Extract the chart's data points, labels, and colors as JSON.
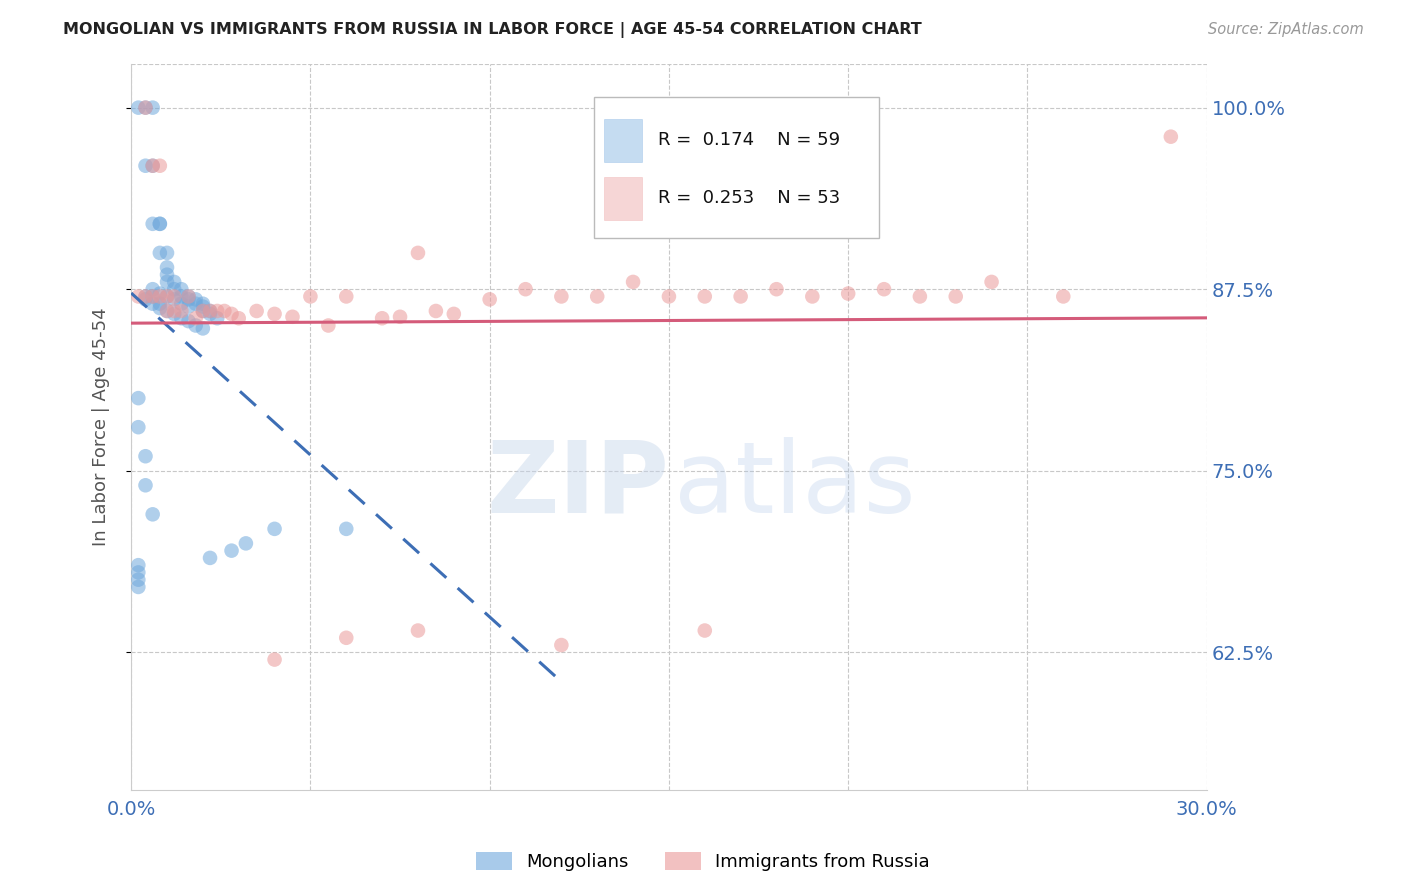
{
  "title": "MONGOLIAN VS IMMIGRANTS FROM RUSSIA IN LABOR FORCE | AGE 45-54 CORRELATION CHART",
  "source": "Source: ZipAtlas.com",
  "ylabel": "In Labor Force | Age 45-54",
  "legend_labels": [
    "Mongolians",
    "Immigrants from Russia"
  ],
  "R_mongolian": 0.174,
  "N_mongolian": 59,
  "R_russia": 0.253,
  "N_russia": 53,
  "x_min": 0.0,
  "x_max": 0.3,
  "y_min": 0.53,
  "y_max": 1.03,
  "yticks": [
    0.625,
    0.75,
    0.875,
    1.0
  ],
  "ytick_labels": [
    "62.5%",
    "75.0%",
    "87.5%",
    "100.0%"
  ],
  "xticks": [
    0.0,
    0.05,
    0.1,
    0.15,
    0.2,
    0.25,
    0.3
  ],
  "color_mongolian": "#6fa8dc",
  "color_russia": "#ea9999",
  "trendline_color_mongolian": "#3d6eb5",
  "trendline_color_russia": "#d45b7a",
  "background_color": "#ffffff",
  "watermark_zip": "ZIP",
  "watermark_atlas": "atlas",
  "mongolian_x": [
    0.002,
    0.004,
    0.006,
    0.004,
    0.006,
    0.006,
    0.008,
    0.008,
    0.008,
    0.01,
    0.01,
    0.01,
    0.01,
    0.012,
    0.012,
    0.014,
    0.014,
    0.016,
    0.016,
    0.018,
    0.018,
    0.02,
    0.02,
    0.02,
    0.022,
    0.022,
    0.024,
    0.006,
    0.008,
    0.01,
    0.012,
    0.014,
    0.016,
    0.004,
    0.004,
    0.006,
    0.006,
    0.008,
    0.008,
    0.01,
    0.012,
    0.014,
    0.016,
    0.018,
    0.02,
    0.002,
    0.002,
    0.004,
    0.004,
    0.006,
    0.04,
    0.06,
    0.032,
    0.028,
    0.022,
    0.002,
    0.002,
    0.002,
    0.002
  ],
  "mongolian_y": [
    1.0,
    1.0,
    1.0,
    0.96,
    0.96,
    0.92,
    0.92,
    0.92,
    0.9,
    0.9,
    0.89,
    0.885,
    0.88,
    0.88,
    0.875,
    0.875,
    0.87,
    0.87,
    0.868,
    0.868,
    0.865,
    0.865,
    0.863,
    0.86,
    0.86,
    0.858,
    0.855,
    0.875,
    0.872,
    0.87,
    0.868,
    0.865,
    0.863,
    0.87,
    0.868,
    0.87,
    0.865,
    0.865,
    0.862,
    0.86,
    0.858,
    0.855,
    0.853,
    0.85,
    0.848,
    0.8,
    0.78,
    0.76,
    0.74,
    0.72,
    0.71,
    0.71,
    0.7,
    0.695,
    0.69,
    0.685,
    0.68,
    0.675,
    0.67
  ],
  "russia_x": [
    0.002,
    0.004,
    0.004,
    0.006,
    0.006,
    0.008,
    0.008,
    0.01,
    0.01,
    0.012,
    0.012,
    0.014,
    0.016,
    0.018,
    0.02,
    0.022,
    0.024,
    0.026,
    0.028,
    0.03,
    0.035,
    0.04,
    0.045,
    0.05,
    0.055,
    0.06,
    0.07,
    0.075,
    0.08,
    0.085,
    0.09,
    0.1,
    0.11,
    0.12,
    0.13,
    0.14,
    0.15,
    0.16,
    0.17,
    0.18,
    0.19,
    0.2,
    0.21,
    0.22,
    0.23,
    0.24,
    0.26,
    0.29,
    0.16,
    0.12,
    0.08,
    0.06,
    0.04
  ],
  "russia_y": [
    0.87,
    1.0,
    0.87,
    0.96,
    0.87,
    0.96,
    0.87,
    0.87,
    0.86,
    0.87,
    0.86,
    0.86,
    0.87,
    0.855,
    0.86,
    0.86,
    0.86,
    0.86,
    0.858,
    0.855,
    0.86,
    0.858,
    0.856,
    0.87,
    0.85,
    0.87,
    0.855,
    0.856,
    0.9,
    0.86,
    0.858,
    0.868,
    0.875,
    0.87,
    0.87,
    0.88,
    0.87,
    0.87,
    0.87,
    0.875,
    0.87,
    0.872,
    0.875,
    0.87,
    0.87,
    0.88,
    0.87,
    0.98,
    0.64,
    0.63,
    0.64,
    0.635,
    0.62
  ]
}
